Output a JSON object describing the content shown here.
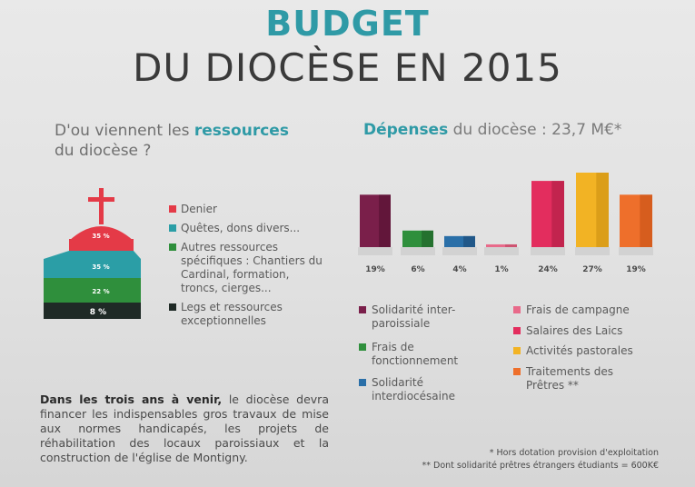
{
  "title": {
    "line1": "BUDGET",
    "line2": "DU DIOCÈSE EN 2015"
  },
  "resources": {
    "heading_pre": "D'ou viennent les",
    "heading_bold": "ressources",
    "heading_post": "du diocèse ?",
    "segments": [
      {
        "label": "Denier",
        "percent": 35,
        "value_label": "35 %",
        "color": "#e43a47"
      },
      {
        "label": "Quêtes, dons divers...",
        "percent": 35,
        "value_label": "35 %",
        "color": "#2b9ea6"
      },
      {
        "label": "Autres ressources spécifiques : Chantiers du Cardinal, formation, troncs, cierges...",
        "percent": 22,
        "value_label": "22 %",
        "color": "#2f8f3c"
      },
      {
        "label": "Legs et ressources exceptionnelles",
        "percent": 8,
        "value_label": "8 %",
        "color": "#1f2a26"
      }
    ]
  },
  "expenses": {
    "heading_bold": "Dépenses",
    "heading_rest": "du diocèse : 23,7 M€*"
  },
  "chart_data": {
    "type": "bar",
    "title": "Dépenses du diocèse : 23,7 M€*",
    "categories": [
      "Solidarité inter-paroissiale",
      "Frais de fonctionnement",
      "Solidarité interdiocésaine",
      "Frais de campagne",
      "Salaires des Laïcs",
      "Activités pastorales",
      "Traitements des Prêtres **"
    ],
    "values": [
      19,
      6,
      4,
      1,
      24,
      27,
      19
    ],
    "value_labels": [
      "19%",
      "6%",
      "4%",
      "1%",
      "24%",
      "27%",
      "19%"
    ],
    "colors": [
      "#7a1f4a",
      "#2f8f3c",
      "#2a6fa8",
      "#e86a8a",
      "#e32d5e",
      "#f2b324",
      "#ee6f2b"
    ],
    "dark_colors": [
      "#4e0f2e",
      "#1d5a25",
      "#1a4670",
      "#b8405c",
      "#a81d41",
      "#c88d10",
      "#c34e14"
    ],
    "ylim": [
      0,
      27
    ]
  },
  "expenses_legend": [
    {
      "label": "Solidarité inter-paroissiale",
      "color": "#7a1f4a"
    },
    {
      "label": "Frais de fonctionnement",
      "color": "#2f8f3c"
    },
    {
      "label": "Solidarité interdiocésaine",
      "color": "#2a6fa8"
    },
    {
      "label": "Frais de campagne",
      "color": "#e86a8a"
    },
    {
      "label": "Salaires des Laics",
      "color": "#e32d5e"
    },
    {
      "label": "Activités pastorales",
      "color": "#f2b324"
    },
    {
      "label": "Traitements des Prêtres **",
      "color": "#ee6f2b"
    }
  ],
  "bottom": {
    "bold": "Dans les trois ans à venir,",
    "text": "le diocèse devra financer les indispensables gros travaux de mise aux normes handicapés, les projets de réhabilitation des locaux paroissiaux et la construction de l'église de Montigny."
  },
  "footnotes": [
    "* Hors dotation provision d'exploitation",
    "** Dont solidarité prêtres étrangers étudiants = 600K€"
  ]
}
